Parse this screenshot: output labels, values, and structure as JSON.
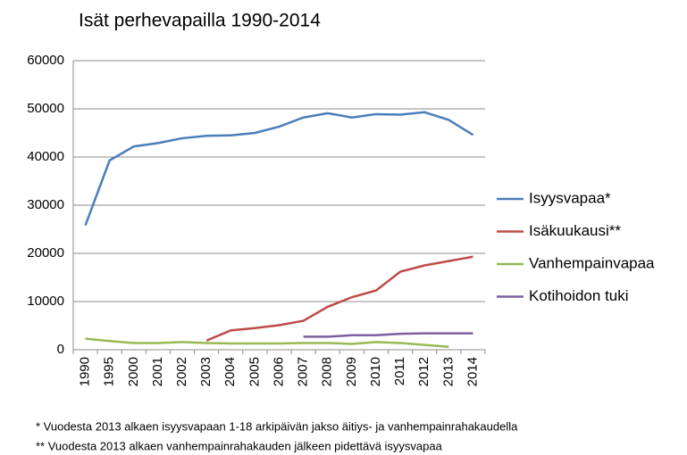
{
  "chart_data": {
    "type": "line",
    "title": "Isät perhevapailla 1990-2014",
    "categories": [
      "1990",
      "1995",
      "2000",
      "2001",
      "2002",
      "2003",
      "2004",
      "2005",
      "2006",
      "2007",
      "2008",
      "2009",
      "2010",
      "2011",
      "2012",
      "2013",
      "2014"
    ],
    "series": [
      {
        "name": "Isyysvapaa*",
        "color": "#4a7ebb",
        "values": [
          25800,
          39300,
          42200,
          42900,
          43900,
          44400,
          44500,
          45000,
          46300,
          48200,
          49100,
          48200,
          48900,
          48800,
          49300,
          47700,
          44600
        ]
      },
      {
        "name": "Isäkuukausi**",
        "color": "#be4b48",
        "values": [
          null,
          null,
          null,
          null,
          null,
          1900,
          4000,
          4500,
          5100,
          6000,
          8900,
          10900,
          12300,
          16200,
          17500,
          18400,
          19300
        ]
      },
      {
        "name": "Vanhempainvapaa",
        "color": "#98b954",
        "values": [
          2300,
          1800,
          1400,
          1400,
          1600,
          1400,
          1300,
          1300,
          1300,
          1400,
          1400,
          1200,
          1600,
          1400,
          1000,
          600,
          null
        ]
      },
      {
        "name": "Kotihoidon tuki",
        "color": "#7d60a0",
        "values": [
          null,
          null,
          null,
          null,
          null,
          null,
          null,
          null,
          null,
          2700,
          2700,
          3000,
          3000,
          3300,
          3400,
          3400,
          3400
        ]
      }
    ],
    "ylim": [
      0,
      60000
    ],
    "yticks": [
      0,
      10000,
      20000,
      30000,
      40000,
      50000,
      60000
    ],
    "grid": true,
    "footnotes": [
      "* Vuodesta 2013 alkaen isyysvapaan 1-18 arkipäivän jakso äitiys- ja vanhempainrahakaudella",
      "** Vuodesta 2013 alkaen vanhempainrahakauden jälkeen pidettävä isyysvapaa"
    ]
  }
}
